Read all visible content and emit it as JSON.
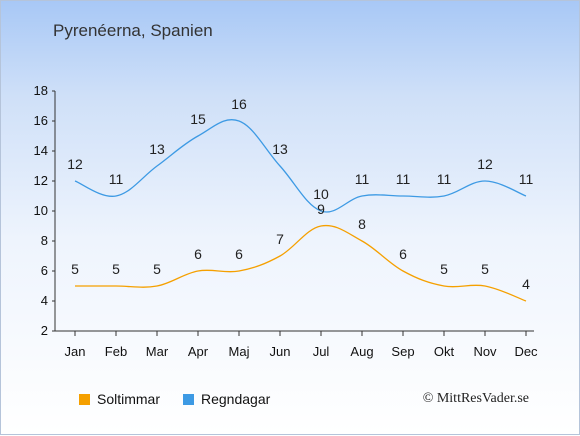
{
  "title": "Pyrenéerna, Spanien",
  "copyright": "© MittResVader.se",
  "chart_data": {
    "type": "line",
    "title": "Pyrenéerna, Spanien",
    "xlabel": "",
    "ylabel": "",
    "categories": [
      "Jan",
      "Feb",
      "Mar",
      "Apr",
      "Maj",
      "Jun",
      "Jul",
      "Aug",
      "Sep",
      "Okt",
      "Nov",
      "Dec"
    ],
    "ylim": [
      2,
      18
    ],
    "yticks": [
      2,
      4,
      6,
      8,
      10,
      12,
      14,
      16,
      18
    ],
    "grid": false,
    "legend_position": "bottom-left",
    "series": [
      {
        "name": "Soltimmar",
        "color": "#f5a000",
        "values": [
          5,
          5,
          5,
          6,
          6,
          7,
          9,
          8,
          6,
          5,
          5,
          4
        ]
      },
      {
        "name": "Regndagar",
        "color": "#3d9ae4",
        "values": [
          12,
          11,
          13,
          15,
          16,
          13,
          10,
          11,
          11,
          11,
          12,
          11
        ]
      }
    ]
  }
}
